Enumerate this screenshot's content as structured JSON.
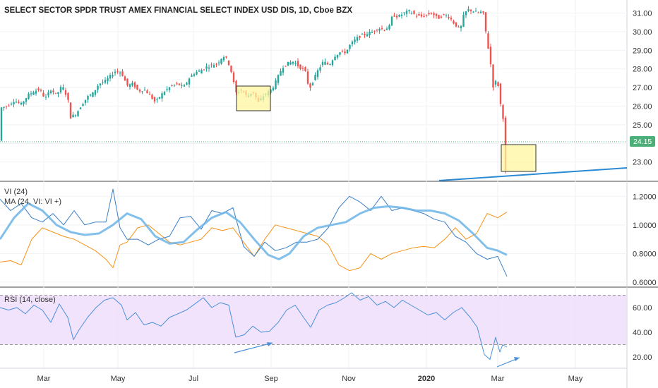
{
  "title": "SELECT SECTOR SPDR TRUST AMEX FINANCIAL SELECT INDEX USD DIS, 1D, Cboe BZX",
  "price_label": "24.15",
  "x_ticks": [
    "Mar",
    "May",
    "Jul",
    "Sep",
    "Nov",
    "2020",
    "Mar",
    "May"
  ],
  "colors": {
    "up": "#26a69a",
    "down": "#ef5350",
    "vi_plus": "#f7931a",
    "vi_minus": "#3a7fc4",
    "ma": "#6cb4e8",
    "rsi": "#4a90d9",
    "rsi_band": "#eedcfb",
    "highlight_fill": "#fff59d",
    "price_badge": "#4caf7a",
    "trendline": "#2a8ad4"
  },
  "chart_data": [
    {
      "type": "candlestick",
      "title": "SELECT SECTOR SPDR TRUST AMEX FINANCIAL SELECT INDEX USD DIS, 1D, Cboe BZX",
      "y_ticks": [
        "23.00",
        "24.00",
        "25.00",
        "26.00",
        "27.00",
        "28.00",
        "29.00",
        "30.00",
        "31.00"
      ],
      "ylim": [
        22.0,
        31.7
      ],
      "last_price": 24.15,
      "close_path": [
        [
          0,
          25.9
        ],
        [
          10,
          26.0
        ],
        [
          20,
          26.3
        ],
        [
          30,
          26.1
        ],
        [
          40,
          26.6
        ],
        [
          48,
          26.8
        ],
        [
          56,
          26.9
        ],
        [
          64,
          26.4
        ],
        [
          72,
          26.9
        ],
        [
          80,
          26.6
        ],
        [
          88,
          27.1
        ],
        [
          96,
          26.4
        ],
        [
          100,
          25.4
        ],
        [
          108,
          25.6
        ],
        [
          116,
          26.1
        ],
        [
          124,
          26.5
        ],
        [
          132,
          26.7
        ],
        [
          140,
          27.2
        ],
        [
          148,
          27.3
        ],
        [
          156,
          27.6
        ],
        [
          164,
          27.9
        ],
        [
          172,
          27.8
        ],
        [
          180,
          27.1
        ],
        [
          188,
          27.2
        ],
        [
          196,
          26.8
        ],
        [
          204,
          26.9
        ],
        [
          212,
          26.6
        ],
        [
          220,
          26.2
        ],
        [
          228,
          26.6
        ],
        [
          236,
          26.9
        ],
        [
          244,
          27.1
        ],
        [
          252,
          27.2
        ],
        [
          260,
          27.0
        ],
        [
          268,
          27.5
        ],
        [
          276,
          27.8
        ],
        [
          284,
          27.9
        ],
        [
          292,
          28.1
        ],
        [
          300,
          28.2
        ],
        [
          308,
          28.3
        ],
        [
          316,
          28.7
        ],
        [
          322,
          28.5
        ],
        [
          328,
          27.8
        ],
        [
          334,
          26.7
        ],
        [
          342,
          26.9
        ],
        [
          350,
          26.5
        ],
        [
          358,
          26.8
        ],
        [
          366,
          26.2
        ],
        [
          374,
          26.6
        ],
        [
          382,
          26.8
        ],
        [
          388,
          27.1
        ],
        [
          394,
          27.6
        ],
        [
          400,
          28.1
        ],
        [
          408,
          28.3
        ],
        [
          416,
          28.4
        ],
        [
          424,
          28.1
        ],
        [
          432,
          27.9
        ],
        [
          438,
          26.9
        ],
        [
          444,
          27.4
        ],
        [
          450,
          27.9
        ],
        [
          458,
          28.4
        ],
        [
          466,
          28.2
        ],
        [
          474,
          28.7
        ],
        [
          482,
          28.9
        ],
        [
          490,
          28.9
        ],
        [
          496,
          29.3
        ],
        [
          504,
          29.6
        ],
        [
          512,
          29.8
        ],
        [
          520,
          29.9
        ],
        [
          528,
          30.0
        ],
        [
          536,
          30.2
        ],
        [
          544,
          30.1
        ],
        [
          552,
          30.3
        ],
        [
          556,
          30.9
        ],
        [
          564,
          30.8
        ],
        [
          572,
          31.0
        ],
        [
          580,
          31.1
        ],
        [
          588,
          30.9
        ],
        [
          596,
          30.8
        ],
        [
          604,
          30.9
        ],
        [
          612,
          31.0
        ],
        [
          620,
          30.7
        ],
        [
          628,
          30.9
        ],
        [
          636,
          30.8
        ],
        [
          644,
          30.4
        ],
        [
          652,
          30.1
        ],
        [
          656,
          30.8
        ],
        [
          662,
          31.2
        ],
        [
          670,
          31.1
        ],
        [
          678,
          31.0
        ],
        [
          684,
          31.1
        ],
        [
          688,
          30.0
        ],
        [
          692,
          29.0
        ],
        [
          696,
          28.0
        ],
        [
          700,
          26.5
        ],
        [
          703,
          27.7
        ],
        [
          706,
          27.0
        ],
        [
          710,
          25.8
        ],
        [
          713,
          25.3
        ],
        [
          716,
          22.5
        ],
        [
          719,
          24.15
        ]
      ]
    },
    {
      "type": "line",
      "title": "VI (24)",
      "y_ticks": [
        "0.6000",
        "0.8000",
        "1.0000",
        "1.2000"
      ],
      "ylim": [
        0.57,
        1.3
      ],
      "series": [
        {
          "name": "VI (24)",
          "x": [
            0,
            15,
            30,
            45,
            60,
            75,
            90,
            105,
            120,
            135,
            150,
            160,
            170,
            180,
            195,
            210,
            225,
            240,
            255,
            270,
            285,
            300,
            315,
            330,
            345,
            360,
            375,
            390,
            405,
            420,
            435,
            450,
            465,
            480,
            495,
            510,
            525,
            540,
            555,
            570,
            585,
            600,
            615,
            630,
            645,
            660,
            675,
            690,
            705,
            718
          ],
          "values": [
            0.74,
            0.75,
            0.72,
            0.9,
            0.98,
            0.95,
            0.92,
            0.9,
            0.86,
            0.82,
            0.76,
            0.7,
            0.86,
            0.88,
            0.98,
            1.0,
            0.94,
            0.88,
            0.86,
            0.88,
            0.9,
            0.98,
            0.96,
            0.98,
            0.88,
            0.78,
            0.9,
            1.0,
            0.98,
            0.96,
            0.94,
            0.92,
            0.86,
            0.72,
            0.68,
            0.7,
            0.8,
            0.76,
            0.8,
            0.82,
            0.84,
            0.85,
            0.84,
            0.9,
            0.98,
            0.9,
            0.94,
            1.08,
            1.05,
            1.09
          ]
        },
        {
          "name": "VI (24)",
          "x": [
            0,
            15,
            30,
            45,
            60,
            75,
            90,
            105,
            120,
            135,
            150,
            160,
            170,
            180,
            195,
            210,
            225,
            240,
            255,
            270,
            285,
            300,
            315,
            330,
            345,
            360,
            375,
            390,
            405,
            420,
            435,
            450,
            465,
            480,
            495,
            510,
            525,
            540,
            555,
            570,
            585,
            600,
            615,
            630,
            645,
            660,
            675,
            690,
            705,
            718
          ],
          "values": [
            1.18,
            1.1,
            1.15,
            1.05,
            1.02,
            1.08,
            1.0,
            1.1,
            1.0,
            1.02,
            1.02,
            1.25,
            0.98,
            0.9,
            0.9,
            0.86,
            0.9,
            0.92,
            1.05,
            1.06,
            0.97,
            1.1,
            1.08,
            1.12,
            0.85,
            0.78,
            0.88,
            0.82,
            0.84,
            0.88,
            0.88,
            0.9,
            0.98,
            1.12,
            1.2,
            1.16,
            1.1,
            1.2,
            1.1,
            1.12,
            1.1,
            1.08,
            1.04,
            1.02,
            0.92,
            0.88,
            0.8,
            0.76,
            0.78,
            0.64
          ]
        },
        {
          "name": "MA (24, VI: VI +)",
          "x": [
            0,
            20,
            40,
            60,
            80,
            100,
            120,
            140,
            160,
            180,
            200,
            220,
            240,
            260,
            280,
            300,
            320,
            340,
            360,
            380,
            395,
            410,
            430,
            450,
            470,
            490,
            510,
            530,
            550,
            570,
            590,
            610,
            630,
            650,
            670,
            690,
            705,
            718
          ],
          "values": [
            0.9,
            1.05,
            1.15,
            1.1,
            1.0,
            0.95,
            0.93,
            0.94,
            1.0,
            1.08,
            1.04,
            0.92,
            0.87,
            0.88,
            0.97,
            1.05,
            1.09,
            1.02,
            0.9,
            0.79,
            0.76,
            0.8,
            0.92,
            0.98,
            1.0,
            1.02,
            1.08,
            1.12,
            1.13,
            1.12,
            1.1,
            1.1,
            1.08,
            1.03,
            0.94,
            0.84,
            0.82,
            0.79
          ]
        }
      ]
    },
    {
      "type": "line",
      "title": "RSI (14, close)",
      "y_ticks": [
        "20.00",
        "40.00",
        "60.00"
      ],
      "ylim": [
        12,
        76
      ],
      "band": [
        30,
        70
      ],
      "series": [
        {
          "name": "RSI (14, close)",
          "x": [
            0,
            12,
            24,
            36,
            48,
            60,
            72,
            84,
            96,
            104,
            112,
            124,
            136,
            148,
            160,
            172,
            180,
            192,
            204,
            216,
            228,
            240,
            252,
            264,
            276,
            288,
            300,
            312,
            324,
            334,
            346,
            358,
            370,
            382,
            394,
            406,
            418,
            430,
            440,
            452,
            464,
            476,
            488,
            498,
            510,
            522,
            534,
            546,
            558,
            570,
            582,
            594,
            606,
            618,
            630,
            642,
            654,
            666,
            676,
            686,
            694,
            702,
            708,
            712,
            718
          ],
          "values": [
            60,
            58,
            60,
            55,
            62,
            58,
            48,
            63,
            52,
            34,
            42,
            52,
            60,
            66,
            68,
            62,
            50,
            56,
            46,
            48,
            45,
            52,
            55,
            58,
            63,
            68,
            60,
            64,
            62,
            36,
            38,
            45,
            40,
            41,
            48,
            58,
            62,
            52,
            44,
            58,
            62,
            64,
            68,
            72,
            66,
            69,
            62,
            65,
            60,
            66,
            62,
            58,
            54,
            56,
            50,
            56,
            60,
            52,
            44,
            22,
            18,
            36,
            24,
            30,
            28
          ]
        }
      ],
      "annotations": [
        "arrow",
        "arrow"
      ]
    }
  ]
}
